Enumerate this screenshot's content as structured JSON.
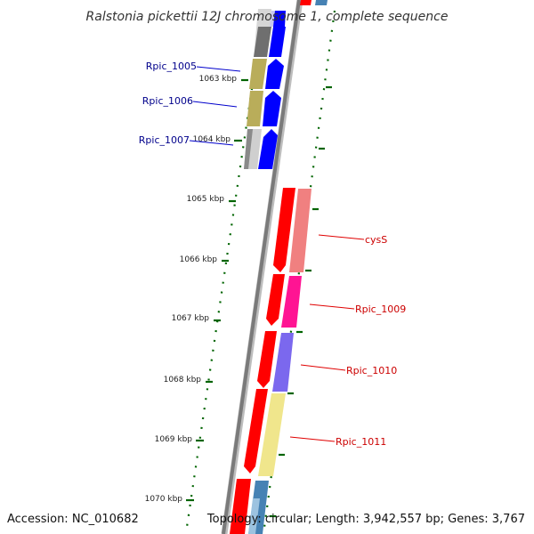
{
  "title": "Ralstonia pickettii 12J chromosome 1, complete sequence",
  "footer": {
    "accession": "Accession: NC_010682",
    "topology": "Topology: circular; Length: 3,942,557 bp; Genes: 3,767"
  },
  "colors": {
    "backbone": "#7a7a7a",
    "forward_label": "#00008b",
    "reverse_label": "#cc0000",
    "tick": "#006400",
    "forward_cds": "#0000ff",
    "reverse_cds": "#ff0000"
  },
  "ticks": [
    "1063 kbp",
    "1064 kbp",
    "1065 kbp",
    "1066 kbp",
    "1067 kbp",
    "1068 kbp",
    "1069 kbp",
    "1070 kbp"
  ],
  "genes": [
    {
      "name": "Rpic_1005",
      "strand": "forward",
      "color": "#00008b"
    },
    {
      "name": "Rpic_1006",
      "strand": "forward",
      "color": "#00008b"
    },
    {
      "name": "Rpic_1007",
      "strand": "forward",
      "color": "#00008b"
    },
    {
      "name": "cysS",
      "strand": "reverse",
      "color": "#cc0000"
    },
    {
      "name": "Rpic_1009",
      "strand": "reverse",
      "color": "#cc0000"
    },
    {
      "name": "Rpic_1010",
      "strand": "reverse",
      "color": "#cc0000"
    },
    {
      "name": "Rpic_1011",
      "strand": "reverse",
      "color": "#cc0000"
    }
  ]
}
